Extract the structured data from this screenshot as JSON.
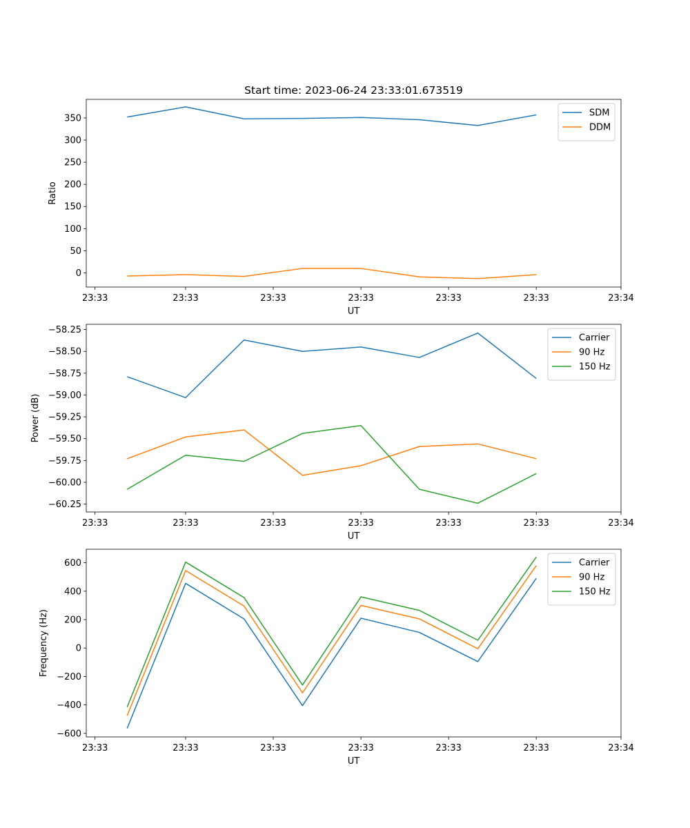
{
  "chart_data": [
    {
      "type": "line",
      "title": "Start time: 2023-06-24 23:33:01.673519",
      "xlabel": "UT",
      "ylabel": "Ratio",
      "x": [
        1,
        2,
        3,
        4,
        5,
        6,
        7,
        8
      ],
      "xlim": [
        0.3,
        9.45
      ],
      "x_tick_positions": [
        0.45,
        2,
        3.5,
        5,
        6.5,
        8,
        9.45
      ],
      "x_tick_labels": [
        "23:33",
        "23:33",
        "23:33",
        "23:33",
        "23:33",
        "23:33",
        "23:34"
      ],
      "ylim": [
        -32,
        392
      ],
      "y_ticks": [
        0,
        50,
        100,
        150,
        200,
        250,
        300,
        350
      ],
      "y_tick_labels": [
        "0",
        "50",
        "100",
        "150",
        "200",
        "250",
        "300",
        "350"
      ],
      "series": [
        {
          "name": "SDM",
          "color": "#1f77b4",
          "values": [
            352,
            375,
            348,
            349,
            351,
            346,
            333,
            357
          ]
        },
        {
          "name": "DDM",
          "color": "#ff7f0e",
          "values": [
            -7,
            -4,
            -8,
            10,
            10,
            -9,
            -13,
            -4
          ]
        }
      ],
      "legend": "top-right",
      "grid": false
    },
    {
      "type": "line",
      "xlabel": "UT",
      "ylabel": "Power (dB)",
      "x": [
        1,
        2,
        3,
        4,
        5,
        6,
        7,
        8
      ],
      "xlim": [
        0.3,
        9.45
      ],
      "x_tick_positions": [
        0.45,
        2,
        3.5,
        5,
        6.5,
        8,
        9.45
      ],
      "x_tick_labels": [
        "23:33",
        "23:33",
        "23:33",
        "23:33",
        "23:33",
        "23:33",
        "23:34"
      ],
      "ylim": [
        -60.34,
        -58.19
      ],
      "y_ticks": [
        -60.25,
        -60.0,
        -59.75,
        -59.5,
        -59.25,
        -59.0,
        -58.75,
        -58.5,
        -58.25
      ],
      "y_tick_labels": [
        "−60.25",
        "−60.00",
        "−59.75",
        "−59.50",
        "−59.25",
        "−59.00",
        "−58.75",
        "−58.50",
        "−58.25"
      ],
      "series": [
        {
          "name": "Carrier",
          "color": "#1f77b4",
          "values": [
            -58.79,
            -59.03,
            -58.37,
            -58.5,
            -58.45,
            -58.57,
            -58.29,
            -58.81
          ]
        },
        {
          "name": "90 Hz",
          "color": "#ff7f0e",
          "values": [
            -59.73,
            -59.48,
            -59.4,
            -59.92,
            -59.81,
            -59.59,
            -59.56,
            -59.73
          ]
        },
        {
          "name": "150 Hz",
          "color": "#2ca02c",
          "values": [
            -60.08,
            -59.69,
            -59.76,
            -59.44,
            -59.35,
            -60.08,
            -60.24,
            -59.9
          ]
        }
      ],
      "legend": "top-right",
      "grid": false
    },
    {
      "type": "line",
      "xlabel": "UT",
      "ylabel": "Frequency (Hz)",
      "x": [
        1,
        2,
        3,
        4,
        5,
        6,
        7,
        8
      ],
      "xlim": [
        0.3,
        9.45
      ],
      "x_tick_positions": [
        0.45,
        2,
        3.5,
        5,
        6.5,
        8,
        9.45
      ],
      "x_tick_labels": [
        "23:33",
        "23:33",
        "23:33",
        "23:33",
        "23:33",
        "23:33",
        "23:34"
      ],
      "ylim": [
        -625,
        695
      ],
      "y_ticks": [
        -600,
        -400,
        -200,
        0,
        200,
        400,
        600
      ],
      "y_tick_labels": [
        "−600",
        "−400",
        "−200",
        "0",
        "200",
        "400",
        "600"
      ],
      "series": [
        {
          "name": "Carrier",
          "color": "#1f77b4",
          "values": [
            -565,
            455,
            205,
            -405,
            210,
            110,
            -95,
            490
          ]
        },
        {
          "name": "90 Hz",
          "color": "#ff7f0e",
          "values": [
            -475,
            545,
            295,
            -315,
            300,
            205,
            -5,
            580
          ]
        },
        {
          "name": "150 Hz",
          "color": "#2ca02c",
          "values": [
            -415,
            605,
            355,
            -260,
            360,
            265,
            55,
            640
          ]
        }
      ],
      "legend": "top-right",
      "grid": false
    }
  ]
}
